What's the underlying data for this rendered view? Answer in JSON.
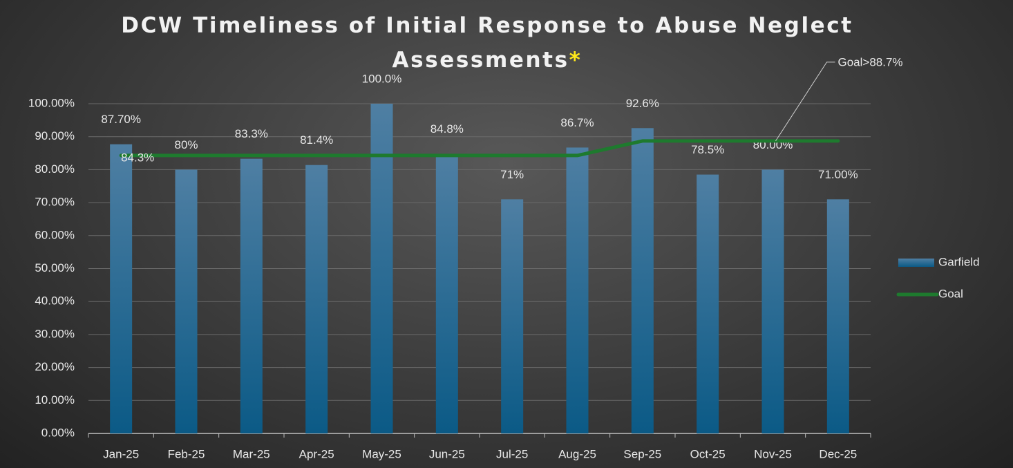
{
  "chart_data": {
    "type": "bar-line",
    "title": "DCW Timeliness of Initial Response to Abuse Neglect Assessments",
    "title_mark": "*",
    "categories": [
      "Jan-25",
      "Feb-25",
      "Mar-25",
      "Apr-25",
      "May-25",
      "Jun-25",
      "Jul-25",
      "Aug-25",
      "Sep-25",
      "Oct-25",
      "Nov-25",
      "Dec-25"
    ],
    "series": [
      {
        "name": "Garfield",
        "type": "bar",
        "color": "#1f6a96",
        "values": [
          87.7,
          80,
          83.3,
          81.4,
          100,
          84.8,
          71,
          86.7,
          92.6,
          78.5,
          80,
          71
        ],
        "value_labels": [
          "87.70%",
          "80%",
          "83.3%",
          "81.4%",
          "100.0%",
          "84.8%",
          "71%",
          "86.7%",
          "92.6%",
          "78.5%",
          "80.00%",
          "71.00%"
        ]
      },
      {
        "name": "Goal",
        "type": "line",
        "color": "#1e7a2e",
        "values": [
          84.3,
          84.3,
          84.3,
          84.3,
          84.3,
          84.3,
          84.3,
          84.3,
          88.7,
          88.7,
          88.7,
          88.7
        ],
        "value_labels": [
          "84.3%",
          null,
          null,
          null,
          null,
          null,
          null,
          null,
          null,
          null,
          null,
          null
        ]
      }
    ],
    "annotations": [
      {
        "text": "Goal>88.7%",
        "category": 10,
        "value": 88.7
      }
    ],
    "ylim": [
      0,
      100
    ],
    "yticks": [
      {
        "value": 0,
        "label": "0.00%"
      },
      {
        "value": 10,
        "label": "10.00%"
      },
      {
        "value": 20,
        "label": "20.00%"
      },
      {
        "value": 30,
        "label": "30.00%"
      },
      {
        "value": 40,
        "label": "40.00%"
      },
      {
        "value": 50,
        "label": "50.00%"
      },
      {
        "value": 60,
        "label": "60.00%"
      },
      {
        "value": 70,
        "label": "70.00%"
      },
      {
        "value": 80,
        "label": "80.00%"
      },
      {
        "value": 90,
        "label": "90.00%"
      },
      {
        "value": 100,
        "label": "100.00%"
      }
    ],
    "grid": true,
    "legend": "right"
  }
}
